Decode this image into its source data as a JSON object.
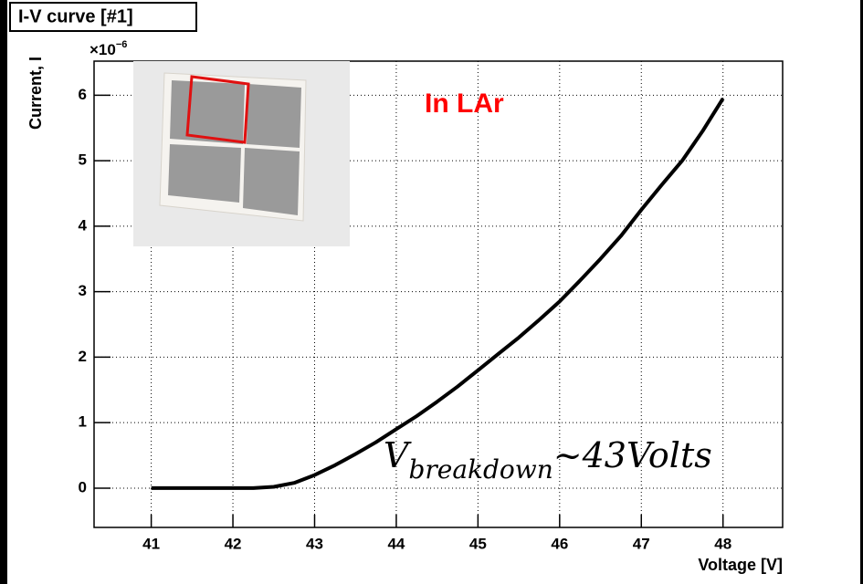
{
  "chart_data": {
    "type": "line",
    "title": "I-V curve [#1]",
    "x_label": "Voltage [V]",
    "y_label": "Current, I",
    "y_multiplier": {
      "base": "×10",
      "exponent": "−6"
    },
    "annotation": "In LAr",
    "annotation_breakdown": {
      "base": "V",
      "subscript": "breakdown",
      "rest": "~43Volts"
    },
    "color": "#000000",
    "x": [
      41,
      41.5,
      42,
      42.25,
      42.5,
      42.75,
      43,
      43.25,
      43.5,
      43.75,
      44,
      44.25,
      44.5,
      44.75,
      45,
      45.25,
      45.5,
      45.75,
      46,
      46.25,
      46.5,
      46.75,
      47,
      47.25,
      47.5,
      47.75,
      48
    ],
    "values": [
      0,
      0,
      0,
      0,
      0.02,
      0.08,
      0.2,
      0.35,
      0.52,
      0.7,
      0.9,
      1.1,
      1.32,
      1.55,
      1.8,
      2.05,
      2.3,
      2.57,
      2.85,
      3.17,
      3.5,
      3.85,
      4.25,
      4.63,
      5.0,
      5.45,
      5.95
    ],
    "xlim": [
      40.3,
      48.73
    ],
    "xticks": [
      41,
      42,
      43,
      44,
      45,
      46,
      47,
      48
    ],
    "ylim": [
      -0.6,
      6.52
    ],
    "yticks": [
      0,
      1,
      2,
      3,
      4,
      5,
      6
    ],
    "grid": true
  }
}
